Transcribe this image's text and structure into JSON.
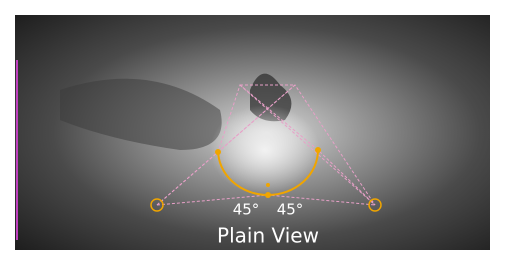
{
  "labels": {
    "left_angle": "45°",
    "right_angle": "45°",
    "caption": "Plain View"
  }
}
